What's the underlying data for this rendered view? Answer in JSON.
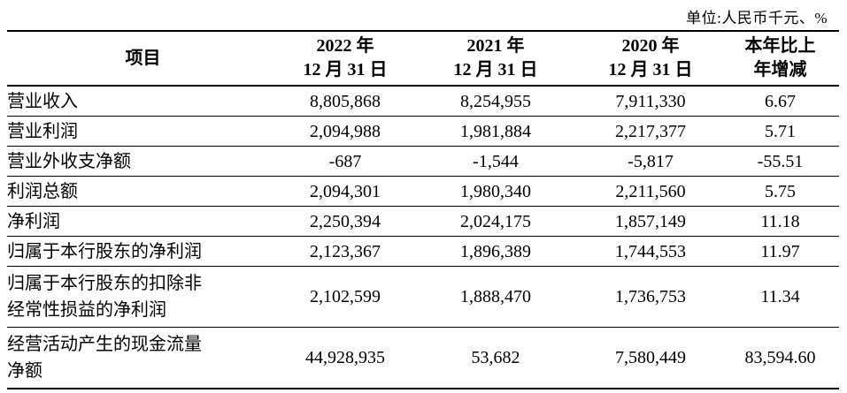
{
  "unit_note": "单位:人民币千元、%",
  "colors": {
    "text": "#000000",
    "border": "#000000",
    "background": "#ffffff"
  },
  "table": {
    "headers": [
      {
        "line1": "项目",
        "line2": ""
      },
      {
        "line1": "2022 年",
        "line2": "12 月 31 日"
      },
      {
        "line1": "2021 年",
        "line2": "12 月 31 日"
      },
      {
        "line1": "2020 年",
        "line2": "12 月 31 日"
      },
      {
        "line1": "本年比上",
        "line2": "年增减"
      }
    ],
    "rows": [
      {
        "label1": "营业收入",
        "label2": "",
        "y2022": "8,805,868",
        "y2021": "8,254,955",
        "y2020": "7,911,330",
        "change": "6.67"
      },
      {
        "label1": "营业利润",
        "label2": "",
        "y2022": "2,094,988",
        "y2021": "1,981,884",
        "y2020": "2,217,377",
        "change": "5.71"
      },
      {
        "label1": "营业外收支净额",
        "label2": "",
        "y2022": "-687",
        "y2021": "-1,544",
        "y2020": "-5,817",
        "change": "-55.51"
      },
      {
        "label1": "利润总额",
        "label2": "",
        "y2022": "2,094,301",
        "y2021": "1,980,340",
        "y2020": "2,211,560",
        "change": "5.75"
      },
      {
        "label1": "净利润",
        "label2": "",
        "y2022": "2,250,394",
        "y2021": "2,024,175",
        "y2020": "1,857,149",
        "change": "11.18"
      },
      {
        "label1": "归属于本行股东的净利润",
        "label2": "",
        "y2022": "2,123,367",
        "y2021": "1,896,389",
        "y2020": "1,744,553",
        "change": "11.97"
      },
      {
        "label1": "归属于本行股东的扣除非",
        "label2": "经常性损益的净利润",
        "y2022": "2,102,599",
        "y2021": "1,888,470",
        "y2020": "1,736,753",
        "change": "11.34"
      },
      {
        "label1": "经营活动产生的现金流量",
        "label2": "净额",
        "y2022": "44,928,935",
        "y2021": "53,682",
        "y2020": "7,580,449",
        "change": "83,594.60"
      }
    ]
  }
}
